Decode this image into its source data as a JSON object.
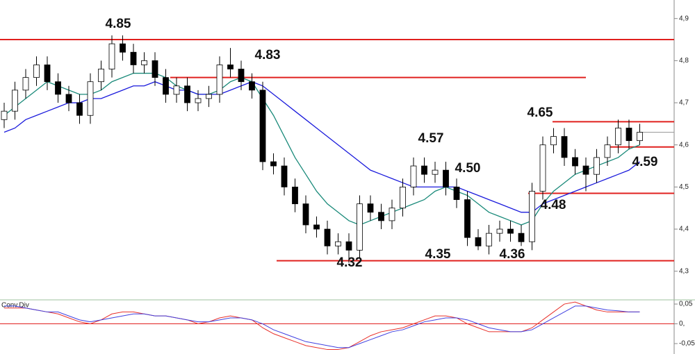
{
  "chart_data": [
    {
      "type": "candlestick",
      "open": [
        4.66,
        4.68,
        4.73,
        4.76,
        4.79,
        4.75,
        4.72,
        4.7,
        4.67,
        4.75,
        4.78,
        4.84,
        4.82,
        4.79,
        4.8,
        4.76,
        4.72,
        4.74,
        4.7,
        4.71,
        4.72,
        4.79,
        4.78,
        4.75,
        4.73,
        4.56,
        4.55,
        4.5,
        4.46,
        4.41,
        4.4,
        4.36,
        4.37,
        4.35,
        4.46,
        4.44,
        4.42,
        4.45,
        4.5,
        4.55,
        4.53,
        4.54,
        4.5,
        4.47,
        4.38,
        4.36,
        4.39,
        4.4,
        4.39,
        4.37,
        4.49,
        4.6,
        4.62,
        4.57,
        4.55,
        4.53,
        4.57,
        4.6,
        4.64,
        4.61
      ],
      "high": [
        4.7,
        4.75,
        4.78,
        4.81,
        4.81,
        4.77,
        4.74,
        4.72,
        4.77,
        4.8,
        4.86,
        4.86,
        4.84,
        4.82,
        4.82,
        4.78,
        4.76,
        4.76,
        4.73,
        4.74,
        4.81,
        4.83,
        4.8,
        4.77,
        4.75,
        4.58,
        4.57,
        4.52,
        4.48,
        4.43,
        4.42,
        4.39,
        4.39,
        4.48,
        4.48,
        4.46,
        4.47,
        4.52,
        4.57,
        4.57,
        4.56,
        4.56,
        4.52,
        4.49,
        4.4,
        4.41,
        4.42,
        4.42,
        4.41,
        4.51,
        4.62,
        4.64,
        4.64,
        4.59,
        4.57,
        4.59,
        4.62,
        4.66,
        4.66,
        4.65
      ],
      "low": [
        4.64,
        4.66,
        4.71,
        4.74,
        4.73,
        4.7,
        4.68,
        4.65,
        4.65,
        4.73,
        4.76,
        4.8,
        4.77,
        4.77,
        4.74,
        4.7,
        4.7,
        4.68,
        4.68,
        4.69,
        4.7,
        4.76,
        4.73,
        4.71,
        4.54,
        4.53,
        4.48,
        4.44,
        4.39,
        4.38,
        4.34,
        4.34,
        4.32,
        4.33,
        4.42,
        4.4,
        4.4,
        4.43,
        4.48,
        4.51,
        4.51,
        4.48,
        4.45,
        4.36,
        4.35,
        4.34,
        4.37,
        4.37,
        4.36,
        4.35,
        4.47,
        4.58,
        4.55,
        4.53,
        4.49,
        4.51,
        4.55,
        4.58,
        4.59,
        4.6
      ],
      "close": [
        4.68,
        4.73,
        4.76,
        4.79,
        4.75,
        4.72,
        4.7,
        4.67,
        4.75,
        4.78,
        4.84,
        4.82,
        4.79,
        4.8,
        4.76,
        4.72,
        4.74,
        4.7,
        4.71,
        4.72,
        4.79,
        4.78,
        4.75,
        4.73,
        4.56,
        4.55,
        4.5,
        4.46,
        4.41,
        4.4,
        4.36,
        4.37,
        4.35,
        4.46,
        4.44,
        4.42,
        4.45,
        4.5,
        4.55,
        4.53,
        4.54,
        4.5,
        4.47,
        4.38,
        4.36,
        4.39,
        4.4,
        4.39,
        4.37,
        4.49,
        4.6,
        4.62,
        4.57,
        4.55,
        4.53,
        4.57,
        4.6,
        4.64,
        4.61,
        4.63
      ],
      "series": [
        {
          "color": "#1a8a7a",
          "values": [
            4.67,
            4.69,
            4.71,
            4.73,
            4.75,
            4.74,
            4.73,
            4.72,
            4.72,
            4.73,
            4.75,
            4.76,
            4.77,
            4.77,
            4.77,
            4.76,
            4.74,
            4.73,
            4.72,
            4.72,
            4.73,
            4.75,
            4.76,
            4.75,
            4.71,
            4.67,
            4.62,
            4.57,
            4.53,
            4.49,
            4.46,
            4.44,
            4.42,
            4.41,
            4.42,
            4.43,
            4.44,
            4.45,
            4.46,
            4.47,
            4.49,
            4.5,
            4.49,
            4.48,
            4.46,
            4.44,
            4.43,
            4.42,
            4.41,
            4.42,
            4.46,
            4.49,
            4.51,
            4.53,
            4.54,
            4.55,
            4.56,
            4.57,
            4.59,
            4.6
          ]
        },
        {
          "color": "#1a1adc",
          "values": [
            4.63,
            4.64,
            4.66,
            4.67,
            4.68,
            4.69,
            4.7,
            4.7,
            4.71,
            4.71,
            4.72,
            4.73,
            4.74,
            4.74,
            4.75,
            4.74,
            4.73,
            4.73,
            4.72,
            4.72,
            4.72,
            4.73,
            4.74,
            4.75,
            4.74,
            4.72,
            4.7,
            4.68,
            4.66,
            4.64,
            4.62,
            4.6,
            4.58,
            4.56,
            4.54,
            4.53,
            4.52,
            4.51,
            4.5,
            4.5,
            4.5,
            4.5,
            4.5,
            4.49,
            4.48,
            4.47,
            4.46,
            4.45,
            4.44,
            4.44,
            4.46,
            4.47,
            4.48,
            4.49,
            4.5,
            4.51,
            4.52,
            4.53,
            4.54,
            4.56
          ]
        }
      ],
      "levels": [
        4.85,
        4.76,
        4.655,
        4.595,
        4.485,
        4.325
      ],
      "level_color": "#e0201e",
      "annotations": [
        "4.85",
        "4.83",
        "4.57",
        "4.50",
        "4.65",
        "4.59",
        "4.48",
        "4.32",
        "4.35",
        "4.36"
      ],
      "ylim": [
        4.232,
        4.944
      ],
      "yticks": [
        {
          "value": 4.3,
          "label": "4,3"
        },
        {
          "value": 4.4,
          "label": "4,4"
        },
        {
          "value": 4.5,
          "label": "4,5"
        },
        {
          "value": 4.6,
          "label": "4,6"
        },
        {
          "value": 4.7,
          "label": "4,7"
        },
        {
          "value": 4.8,
          "label": "4,8"
        },
        {
          "value": 4.9,
          "label": "4,9"
        }
      ]
    },
    {
      "type": "line",
      "title": "Conv.Div",
      "series": [
        {
          "color": "#e8302a",
          "values": [
            0.04,
            0.04,
            0.04,
            0.035,
            0.03,
            0.025,
            0.015,
            0.005,
            0.0,
            0.01,
            0.025,
            0.03,
            0.03,
            0.025,
            0.02,
            0.02,
            0.015,
            0.01,
            0.0,
            0.005,
            0.015,
            0.02,
            0.015,
            0.01,
            -0.01,
            -0.025,
            -0.035,
            -0.045,
            -0.055,
            -0.06,
            -0.065,
            -0.065,
            -0.06,
            -0.045,
            -0.03,
            -0.02,
            -0.015,
            -0.01,
            0.0,
            0.01,
            0.02,
            0.02,
            0.015,
            0.0,
            -0.01,
            -0.02,
            -0.02,
            -0.02,
            -0.02,
            -0.01,
            0.01,
            0.03,
            0.05,
            0.055,
            0.045,
            0.035,
            0.03,
            0.03,
            0.03,
            0.03
          ]
        },
        {
          "color": "#4040e0",
          "values": [
            0.045,
            0.045,
            0.04,
            0.035,
            0.03,
            0.03,
            0.02,
            0.01,
            0.005,
            0.01,
            0.015,
            0.02,
            0.025,
            0.025,
            0.02,
            0.02,
            0.015,
            0.01,
            0.005,
            0.005,
            0.01,
            0.015,
            0.015,
            0.01,
            0.0,
            -0.015,
            -0.025,
            -0.035,
            -0.045,
            -0.05,
            -0.055,
            -0.06,
            -0.06,
            -0.05,
            -0.04,
            -0.03,
            -0.02,
            -0.015,
            -0.005,
            0.005,
            0.01,
            0.015,
            0.015,
            0.01,
            0.0,
            -0.01,
            -0.015,
            -0.02,
            -0.02,
            -0.015,
            0.0,
            0.015,
            0.03,
            0.045,
            0.045,
            0.04,
            0.035,
            0.033,
            0.03,
            0.03
          ]
        }
      ],
      "zero_line_color": "#e0201e",
      "ylim": [
        -0.0763,
        0.0606
      ],
      "yticks": [
        {
          "value": -0.05,
          "label": "-0,05"
        },
        {
          "value": 0,
          "label": "0,"
        },
        {
          "value": 0.05,
          "label": "0,05"
        }
      ]
    }
  ]
}
